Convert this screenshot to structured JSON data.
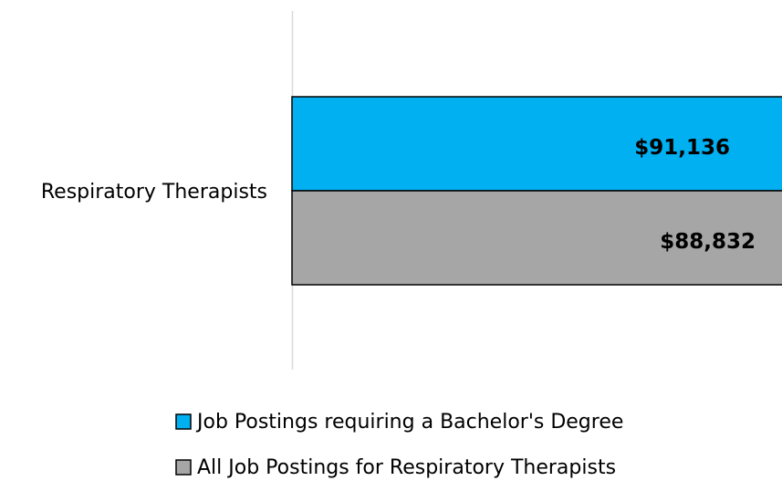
{
  "chart_data": {
    "type": "bar",
    "orientation": "horizontal",
    "categories": [
      "Respiratory Therapists"
    ],
    "series": [
      {
        "name": "Job Postings requiring a Bachelor's Degree",
        "color": "#00b0f0",
        "values": [
          91136
        ],
        "value_labels": [
          "$91,136"
        ]
      },
      {
        "name": "All Job Postings for Respiratory Therapists",
        "color": "#a6a6a6",
        "values": [
          88832
        ],
        "value_labels": [
          "$88,832"
        ]
      }
    ]
  }
}
